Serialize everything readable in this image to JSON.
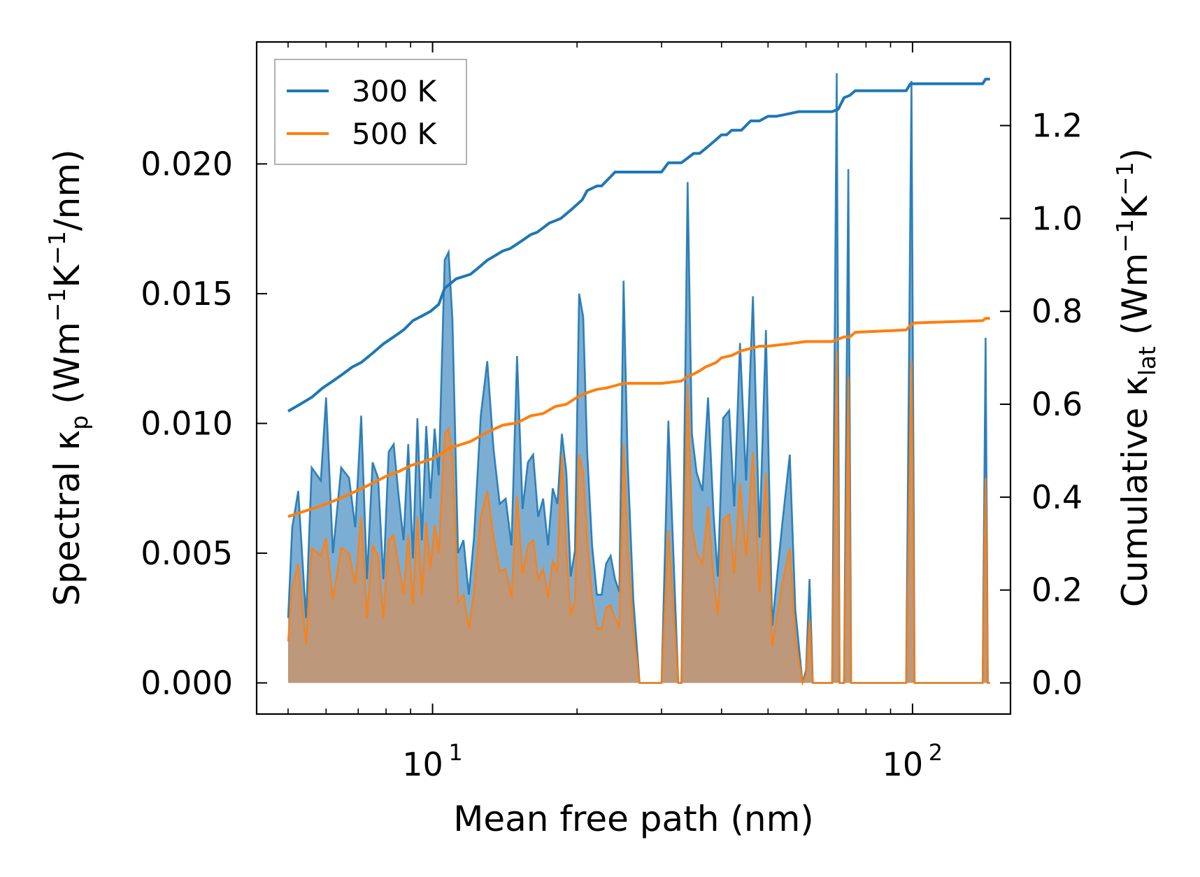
{
  "chart_data": {
    "type": "line",
    "title": "",
    "xlabel": "Mean free path (nm)",
    "xscale": "log",
    "xlim": [
      4.3,
      160
    ],
    "xticks": [
      {
        "value": 10,
        "base": "10",
        "exp": "1"
      },
      {
        "value": 100,
        "base": "10",
        "exp": "2"
      }
    ],
    "left_axis": {
      "label_parts": [
        "Spectral κ",
        "p",
        " (Wm",
        "−1",
        "K",
        "−1",
        "/nm)"
      ],
      "ylim": [
        -0.0012,
        0.0247
      ],
      "ticks": [
        "0.000",
        "0.005",
        "0.010",
        "0.015",
        "0.020"
      ]
    },
    "right_axis": {
      "label_parts": [
        "Cumulative κ",
        "lat",
        " (Wm",
        "−1",
        "K",
        "−1",
        ")"
      ],
      "ylim": [
        -0.067,
        1.38
      ],
      "ticks": [
        "0.0",
        "0.2",
        "0.4",
        "0.6",
        "0.8",
        "1.0",
        "1.2"
      ]
    },
    "legend": {
      "position": "top-left",
      "entries": [
        {
          "label": "300 K",
          "color": "#1f77b4"
        },
        {
          "label": "500 K",
          "color": "#ff7f0e"
        }
      ]
    },
    "colors": {
      "blue": "#1f77b4",
      "orange": "#ff7f0e",
      "blue_fill": "#4a8fc4",
      "orange_fill": "#c9946a"
    },
    "spectral_series": [
      {
        "name": "300 K spectral",
        "axis": "left",
        "x": [
          5.0,
          5.1,
          5.25,
          5.45,
          5.6,
          5.85,
          6.0,
          6.2,
          6.45,
          6.7,
          6.9,
          7.1,
          7.3,
          7.5,
          7.7,
          7.9,
          8.1,
          8.3,
          8.5,
          8.7,
          8.9,
          9.1,
          9.3,
          9.5,
          9.7,
          9.9,
          10.1,
          10.3,
          10.6,
          10.8,
          11.0,
          11.3,
          11.6,
          11.9,
          12.2,
          12.6,
          13.0,
          13.4,
          13.8,
          14.2,
          14.6,
          15.0,
          15.4,
          15.8,
          16.2,
          16.6,
          17.0,
          17.4,
          17.8,
          18.2,
          18.6,
          19.0,
          19.4,
          19.8,
          20.2,
          20.6,
          21.0,
          21.5,
          22.0,
          22.5,
          23.0,
          23.5,
          24.0,
          24.5,
          25.0,
          25.5,
          26.2,
          27.0,
          30.0,
          31.0,
          32.5,
          33.0,
          34.0,
          34.7,
          35.5,
          36.5,
          37.5,
          38.5,
          39.3,
          40.3,
          41.5,
          42.5,
          43.7,
          45.0,
          46.5,
          48.0,
          49.5,
          51.0,
          53.5,
          55.5,
          57.0,
          59.0,
          60.0,
          61.0,
          62.0,
          68.0,
          69.5,
          70.5,
          72.0,
          73.5,
          74.5,
          76.0,
          97.0,
          99.5,
          101.0,
          103.0,
          140.0,
          142.0,
          143.5,
          145.0
        ],
        "values": [
          0.0025,
          0.006,
          0.0074,
          0.0025,
          0.0083,
          0.0078,
          0.011,
          0.005,
          0.0083,
          0.0079,
          0.006,
          0.0103,
          0.004,
          0.0085,
          0.0079,
          0.004,
          0.0089,
          0.0092,
          0.0072,
          0.0055,
          0.0092,
          0.0048,
          0.0102,
          0.0055,
          0.0099,
          0.0071,
          0.0098,
          0.008,
          0.0163,
          0.0166,
          0.014,
          0.005,
          0.0055,
          0.0034,
          0.0056,
          0.0103,
          0.0124,
          0.009,
          0.0069,
          0.0071,
          0.0053,
          0.0126,
          0.0067,
          0.0085,
          0.0088,
          0.0064,
          0.0071,
          0.0053,
          0.0075,
          0.0069,
          0.0096,
          0.0081,
          0.0041,
          0.0051,
          0.015,
          0.0141,
          0.0089,
          0.0053,
          0.0034,
          0.0034,
          0.0046,
          0.0049,
          0.004,
          0.0035,
          0.0155,
          0.0085,
          0.0032,
          0.0,
          0.0,
          0.0101,
          0.0,
          0.0,
          0.0193,
          0.0096,
          0.0081,
          0.0074,
          0.011,
          0.0065,
          0.0041,
          0.0102,
          0.0105,
          0.0068,
          0.0131,
          0.0078,
          0.0149,
          0.0056,
          0.0136,
          0.0022,
          0.0061,
          0.0088,
          0.0028,
          0.0,
          0.0005,
          0.004,
          0.0,
          0.0,
          0.0235,
          0.0,
          0.0,
          0.0198,
          0.0,
          0.0,
          0.0,
          0.0232,
          0.0,
          0.0,
          0.0,
          0.0133,
          0.0,
          0.0
        ]
      },
      {
        "name": "500 K spectral",
        "axis": "left",
        "x": [
          5.0,
          5.1,
          5.25,
          5.45,
          5.6,
          5.85,
          6.0,
          6.2,
          6.45,
          6.7,
          6.9,
          7.1,
          7.3,
          7.5,
          7.7,
          7.9,
          8.1,
          8.3,
          8.5,
          8.7,
          8.9,
          9.1,
          9.3,
          9.5,
          9.7,
          9.9,
          10.1,
          10.3,
          10.6,
          10.8,
          11.0,
          11.3,
          11.6,
          11.9,
          12.2,
          12.6,
          13.0,
          13.4,
          13.8,
          14.2,
          14.6,
          15.0,
          15.4,
          15.8,
          16.2,
          16.6,
          17.0,
          17.4,
          17.8,
          18.2,
          18.6,
          19.0,
          19.4,
          19.8,
          20.2,
          20.6,
          21.0,
          21.5,
          22.0,
          22.5,
          23.0,
          23.5,
          24.0,
          24.5,
          25.0,
          25.5,
          26.2,
          27.0,
          30.0,
          31.0,
          32.5,
          33.0,
          34.0,
          34.7,
          35.5,
          36.5,
          37.5,
          38.5,
          39.3,
          40.3,
          41.5,
          42.5,
          43.7,
          45.0,
          46.5,
          48.0,
          49.5,
          51.0,
          53.5,
          55.5,
          57.0,
          59.0,
          60.0,
          61.0,
          62.0,
          68.0,
          69.5,
          70.5,
          72.0,
          73.5,
          74.5,
          76.0,
          97.0,
          99.5,
          101.0,
          103.0,
          140.0,
          142.0,
          143.5,
          145.0
        ],
        "values": [
          0.0016,
          0.0037,
          0.0046,
          0.0015,
          0.0052,
          0.0049,
          0.0056,
          0.0032,
          0.0052,
          0.005,
          0.0038,
          0.0064,
          0.0025,
          0.0053,
          0.0049,
          0.0025,
          0.0055,
          0.0057,
          0.0045,
          0.0034,
          0.0057,
          0.003,
          0.0064,
          0.0034,
          0.0062,
          0.0044,
          0.0061,
          0.005,
          0.0096,
          0.0098,
          0.0087,
          0.0031,
          0.0034,
          0.0021,
          0.0035,
          0.0064,
          0.0074,
          0.0056,
          0.0043,
          0.0044,
          0.0033,
          0.0072,
          0.0042,
          0.0053,
          0.0055,
          0.004,
          0.0044,
          0.0033,
          0.0047,
          0.0043,
          0.0088,
          0.005,
          0.0026,
          0.0032,
          0.0088,
          0.0081,
          0.0055,
          0.0033,
          0.0021,
          0.0021,
          0.0029,
          0.003,
          0.0025,
          0.0022,
          0.0092,
          0.0053,
          0.002,
          0.0,
          0.0,
          0.0059,
          0.0,
          0.0,
          0.0115,
          0.006,
          0.005,
          0.0046,
          0.0068,
          0.004,
          0.0026,
          0.0063,
          0.0065,
          0.0042,
          0.0077,
          0.0049,
          0.0089,
          0.0035,
          0.0081,
          0.0014,
          0.0038,
          0.0052,
          0.0017,
          0.0,
          0.0003,
          0.0024,
          0.0,
          0.0,
          0.0128,
          0.0,
          0.0,
          0.0118,
          0.0,
          0.0,
          0.0,
          0.0124,
          0.0,
          0.0,
          0.0,
          0.0079,
          0.0,
          0.0
        ]
      }
    ],
    "cumulative_series": [
      {
        "name": "300 K",
        "axis": "right",
        "x": [
          5.0,
          5.3,
          5.6,
          5.9,
          6.2,
          6.5,
          6.8,
          7.1,
          7.5,
          7.9,
          8.3,
          8.7,
          9.1,
          9.5,
          9.9,
          10.3,
          10.6,
          10.9,
          11.2,
          11.6,
          12.0,
          12.5,
          13.0,
          13.5,
          14.0,
          14.5,
          15.0,
          15.5,
          16.0,
          16.5,
          17.0,
          17.5,
          18.0,
          18.5,
          19.0,
          19.5,
          20.0,
          20.5,
          21.0,
          21.5,
          22.0,
          22.5,
          23.0,
          23.5,
          24.0,
          24.5,
          25.0,
          25.5,
          26.0,
          27.0,
          30.0,
          31.0,
          32.0,
          33.0,
          34.0,
          35.0,
          36.0,
          37.0,
          38.0,
          39.0,
          40.0,
          41.0,
          42.0,
          43.0,
          44.0,
          45.0,
          46.0,
          48.0,
          50.0,
          52.0,
          55.0,
          58.0,
          62.0,
          68.0,
          70.0,
          72.0,
          74.0,
          76.0,
          97.0,
          99.0,
          101.0,
          140.0,
          142.0,
          145.0
        ],
        "values": [
          0.585,
          0.6,
          0.615,
          0.635,
          0.65,
          0.665,
          0.68,
          0.69,
          0.71,
          0.73,
          0.745,
          0.76,
          0.78,
          0.79,
          0.8,
          0.815,
          0.85,
          0.86,
          0.87,
          0.875,
          0.88,
          0.895,
          0.91,
          0.92,
          0.93,
          0.935,
          0.945,
          0.955,
          0.965,
          0.97,
          0.98,
          0.99,
          0.995,
          1.0,
          1.01,
          1.02,
          1.03,
          1.04,
          1.06,
          1.065,
          1.07,
          1.07,
          1.08,
          1.09,
          1.1,
          1.1,
          1.1,
          1.1,
          1.1,
          1.1,
          1.1,
          1.12,
          1.12,
          1.12,
          1.13,
          1.14,
          1.14,
          1.15,
          1.16,
          1.17,
          1.18,
          1.18,
          1.19,
          1.19,
          1.19,
          1.2,
          1.21,
          1.21,
          1.22,
          1.22,
          1.225,
          1.23,
          1.23,
          1.23,
          1.235,
          1.26,
          1.265,
          1.275,
          1.275,
          1.29,
          1.29,
          1.29,
          1.3,
          1.3
        ]
      },
      {
        "name": "500 K",
        "axis": "right",
        "x": [
          5.0,
          5.5,
          6.0,
          6.5,
          7.0,
          7.5,
          8.0,
          8.5,
          9.0,
          9.5,
          10.0,
          10.4,
          10.8,
          11.2,
          11.6,
          12.0,
          13.0,
          14.0,
          15.0,
          16.0,
          17.0,
          18.0,
          19.0,
          20.0,
          21.0,
          22.0,
          23.0,
          24.0,
          25.0,
          26.0,
          27.0,
          30.0,
          33.0,
          34.0,
          35.0,
          36.0,
          37.0,
          38.0,
          39.0,
          40.0,
          42.0,
          44.0,
          46.0,
          48.0,
          50.0,
          55.0,
          60.0,
          68.0,
          70.0,
          72.0,
          74.0,
          76.0,
          97.0,
          99.0,
          101.0,
          140.0,
          142.0,
          145.0
        ],
        "values": [
          0.358,
          0.372,
          0.385,
          0.4,
          0.415,
          0.43,
          0.445,
          0.455,
          0.468,
          0.475,
          0.483,
          0.492,
          0.505,
          0.51,
          0.515,
          0.52,
          0.54,
          0.555,
          0.56,
          0.575,
          0.58,
          0.595,
          0.6,
          0.615,
          0.625,
          0.632,
          0.635,
          0.64,
          0.645,
          0.645,
          0.645,
          0.645,
          0.65,
          0.66,
          0.665,
          0.672,
          0.68,
          0.685,
          0.69,
          0.7,
          0.705,
          0.715,
          0.72,
          0.725,
          0.725,
          0.73,
          0.735,
          0.735,
          0.74,
          0.745,
          0.745,
          0.755,
          0.76,
          0.77,
          0.775,
          0.78,
          0.785,
          0.785
        ]
      }
    ]
  }
}
